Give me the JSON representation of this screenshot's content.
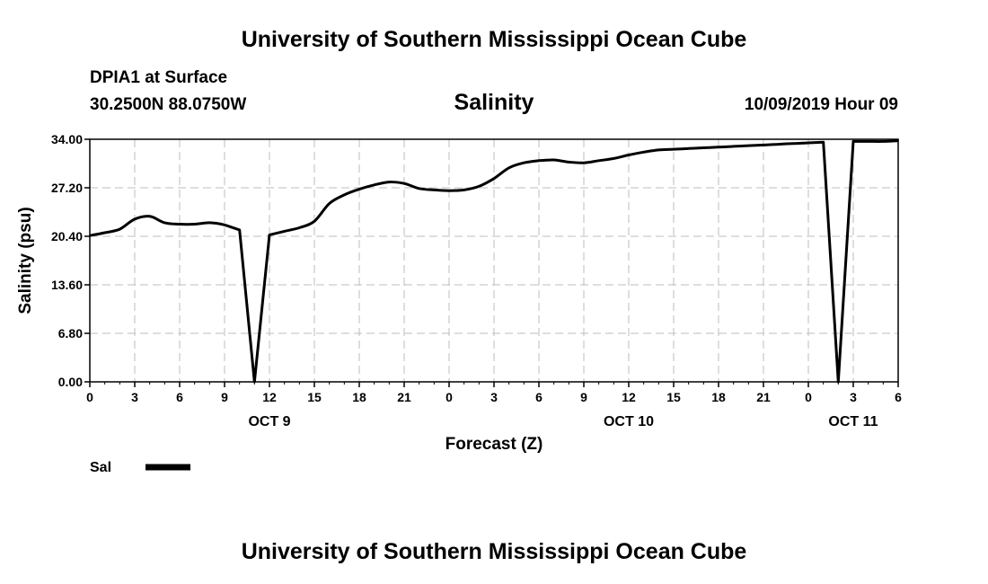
{
  "header": {
    "banner": "University of Southern Mississippi Ocean Cube",
    "station": "DPIA1 at Surface",
    "coords": "30.2500N 88.0750W",
    "run_time": "10/09/2019 Hour 09"
  },
  "footer": {
    "banner": "University of Southern Mississippi Ocean Cube"
  },
  "chart_data": {
    "type": "line",
    "title": "Salinity",
    "xlabel": "Forecast (Z)",
    "ylabel": "Salinity (psu)",
    "ylim": [
      0,
      34
    ],
    "xlim": [
      0,
      54
    ],
    "grid": true,
    "legend_placement": "bottom-left",
    "line_color": "#000000",
    "x_ticks": [
      "0",
      "3",
      "6",
      "9",
      "12",
      "15",
      "18",
      "21",
      "0",
      "3",
      "6",
      "9",
      "12",
      "15",
      "18",
      "21",
      "0",
      "3",
      "6"
    ],
    "y_ticks": [
      "0.00",
      "6.80",
      "13.60",
      "20.40",
      "27.20",
      "34.00"
    ],
    "day_labels": [
      {
        "label": "OCT 9",
        "x": 12
      },
      {
        "label": "OCT 10",
        "x": 36
      },
      {
        "label": "OCT 11",
        "x": 51
      }
    ],
    "series": [
      {
        "name": "Sal",
        "x": [
          0,
          1,
          2,
          3,
          4,
          5,
          6,
          7,
          8,
          9,
          10,
          11,
          12,
          13,
          14,
          15,
          16,
          17,
          18,
          19,
          20,
          21,
          22,
          23,
          24,
          25,
          26,
          27,
          28,
          29,
          30,
          31,
          32,
          33,
          34,
          35,
          36,
          37,
          38,
          39,
          40,
          41,
          42,
          43,
          44,
          45,
          46,
          47,
          48,
          49,
          50,
          51,
          52,
          53,
          54
        ],
        "values": [
          20.5,
          20.9,
          21.4,
          22.8,
          23.2,
          22.3,
          22.1,
          22.1,
          22.3,
          22.0,
          21.3,
          0.0,
          20.6,
          21.1,
          21.6,
          22.5,
          25.0,
          26.2,
          27.0,
          27.6,
          28.0,
          27.8,
          27.1,
          26.9,
          26.8,
          26.9,
          27.4,
          28.5,
          30.0,
          30.7,
          31.0,
          31.1,
          30.8,
          30.7,
          31.0,
          31.3,
          31.8,
          32.2,
          32.5,
          32.6,
          32.7,
          32.8,
          32.9,
          33.0,
          33.1,
          33.2,
          33.3,
          33.4,
          33.5,
          33.6,
          0.0,
          33.7,
          33.7,
          33.7,
          33.8
        ]
      }
    ]
  }
}
